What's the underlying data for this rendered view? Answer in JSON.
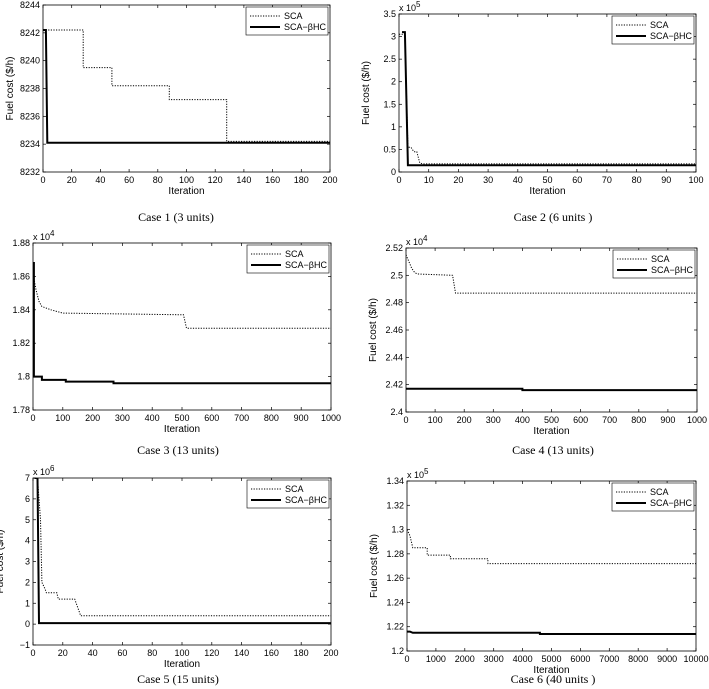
{
  "legend_labels": [
    "SCA",
    "SCA−βHC"
  ],
  "chart_data": [
    {
      "type": "line",
      "caption": "Case 1 (3 units)",
      "xlabel": "Iteration",
      "ylabel": "Fuel cost ($/h)",
      "exponent": "",
      "xlim": [
        0,
        200
      ],
      "ylim": [
        8232,
        8244
      ],
      "xticks": [
        "0",
        "20",
        "40",
        "60",
        "80",
        "100",
        "120",
        "140",
        "160",
        "180",
        "200"
      ],
      "yticks": [
        "8232",
        "8234",
        "8236",
        "8238",
        "8240",
        "8242",
        "8244"
      ],
      "legend": "top-right",
      "series": [
        {
          "name": "SCA",
          "x": [
            0,
            28,
            28,
            48,
            48,
            88,
            88,
            128,
            128,
            200
          ],
          "y": [
            8242.2,
            8242.2,
            8239.5,
            8239.5,
            8238.2,
            8238.2,
            8237.2,
            8237.2,
            8234.2,
            8234.2
          ]
        },
        {
          "name": "SCA−βHC",
          "x": [
            0,
            2,
            3,
            200
          ],
          "y": [
            8242.2,
            8242.2,
            8234.1,
            8234.1
          ]
        }
      ]
    },
    {
      "type": "line",
      "caption": "Case 2 (6 units )",
      "xlabel": "Iteration",
      "ylabel": "Fuel cost ($/h)",
      "exponent": "5",
      "xlim": [
        0,
        100
      ],
      "ylim": [
        0,
        3.5
      ],
      "xticks": [
        "0",
        "10",
        "20",
        "30",
        "40",
        "50",
        "60",
        "70",
        "80",
        "90",
        "100"
      ],
      "yticks": [
        "0",
        "0.5",
        "1",
        "1.5",
        "2",
        "2.5",
        "3",
        "3.5"
      ],
      "legend": "top-right",
      "series": [
        {
          "name": "SCA",
          "x": [
            0,
            2,
            3,
            4,
            5,
            6,
            7,
            8,
            100
          ],
          "y": [
            3.05,
            3.05,
            0.55,
            0.55,
            0.45,
            0.45,
            0.2,
            0.18,
            0.18
          ]
        },
        {
          "name": "SCA−βHC",
          "x": [
            1,
            2,
            3,
            100
          ],
          "y": [
            3.1,
            3.1,
            0.15,
            0.15
          ]
        }
      ]
    },
    {
      "type": "line",
      "caption": "Case 3 (13 units)",
      "xlabel": "Iteration",
      "ylabel": "",
      "exponent": "4",
      "xlim": [
        0,
        1000
      ],
      "ylim": [
        1.78,
        1.88
      ],
      "xticks": [
        "0",
        "100",
        "200",
        "300",
        "400",
        "500",
        "600",
        "700",
        "800",
        "900",
        "1000"
      ],
      "yticks": [
        "1.78",
        "1.8",
        "1.82",
        "1.84",
        "1.86",
        "1.88"
      ],
      "legend": "top-right",
      "series": [
        {
          "name": "SCA",
          "x": [
            0,
            10,
            20,
            30,
            60,
            100,
            505,
            515,
            1000
          ],
          "y": [
            1.862,
            1.852,
            1.845,
            1.842,
            1.84,
            1.838,
            1.837,
            1.829,
            1.829
          ]
        },
        {
          "name": "SCA−βHC",
          "x": [
            0,
            3,
            3,
            30,
            30,
            110,
            110,
            270,
            270,
            1000
          ],
          "y": [
            1.868,
            1.868,
            1.8,
            1.8,
            1.798,
            1.798,
            1.797,
            1.797,
            1.796,
            1.796
          ]
        }
      ]
    },
    {
      "type": "line",
      "caption": "Case 4 (13 units)",
      "xlabel": "Iteration",
      "ylabel": "Fuel cost ($/h)",
      "exponent": "4",
      "xlim": [
        0,
        1000
      ],
      "ylim": [
        2.4,
        2.52
      ],
      "xticks": [
        "0",
        "100",
        "200",
        "300",
        "400",
        "500",
        "600",
        "700",
        "800",
        "900",
        "1000"
      ],
      "yticks": [
        "2.4",
        "2.42",
        "2.44",
        "2.46",
        "2.48",
        "2.5",
        "2.52"
      ],
      "legend": "top-right",
      "series": [
        {
          "name": "SCA",
          "x": [
            0,
            10,
            20,
            30,
            40,
            160,
            170,
            1000
          ],
          "y": [
            2.515,
            2.51,
            2.505,
            2.502,
            2.501,
            2.5,
            2.487,
            2.487
          ]
        },
        {
          "name": "SCA−βHC",
          "x": [
            0,
            400,
            400,
            1000
          ],
          "y": [
            2.417,
            2.417,
            2.416,
            2.416
          ]
        }
      ]
    },
    {
      "type": "line",
      "caption": "Case 5 (15 units)",
      "xlabel": "Iteration",
      "ylabel": "Fuel cost ($/h)",
      "exponent": "6",
      "xlim": [
        0,
        200
      ],
      "ylim": [
        -1,
        7
      ],
      "xticks": [
        "0",
        "20",
        "40",
        "60",
        "80",
        "100",
        "120",
        "140",
        "160",
        "180",
        "200"
      ],
      "yticks": [
        "−1",
        "0",
        "1",
        "2",
        "3",
        "4",
        "5",
        "6",
        "7"
      ],
      "legend": "top-right",
      "series": [
        {
          "name": "SCA",
          "x": [
            0,
            3,
            5,
            6,
            8,
            9,
            16,
            17,
            28,
            32,
            200
          ],
          "y": [
            7.0,
            7.0,
            5.0,
            2.0,
            1.7,
            1.5,
            1.5,
            1.2,
            1.2,
            0.4,
            0.4
          ]
        },
        {
          "name": "SCA−βHC",
          "x": [
            1,
            3,
            4,
            200
          ],
          "y": [
            7.0,
            7.0,
            0.05,
            0.05
          ]
        }
      ]
    },
    {
      "type": "line",
      "caption": "Case 6 (40 units )",
      "xlabel": "Iteration",
      "ylabel": "Fuel cost ($/h)",
      "exponent": "5",
      "xlim": [
        0,
        10000
      ],
      "ylim": [
        1.2,
        1.34
      ],
      "xticks": [
        "0",
        "1000",
        "2000",
        "3000",
        "4000",
        "5000",
        "6000",
        "7000",
        "8000",
        "9000",
        "10000"
      ],
      "yticks": [
        "1.2",
        "1.22",
        "1.24",
        "1.26",
        "1.28",
        "1.3",
        "1.32",
        "1.34"
      ],
      "legend": "top-right",
      "series": [
        {
          "name": "SCA",
          "x": [
            0,
            100,
            200,
            200,
            700,
            700,
            1500,
            1500,
            2800,
            2800,
            10000
          ],
          "y": [
            1.3,
            1.295,
            1.285,
            1.285,
            1.285,
            1.279,
            1.279,
            1.276,
            1.276,
            1.272,
            1.272
          ]
        },
        {
          "name": "SCA−βHC",
          "x": [
            0,
            100,
            200,
            4600,
            4600,
            10000
          ],
          "y": [
            1.216,
            1.216,
            1.215,
            1.215,
            1.214,
            1.214
          ]
        }
      ]
    }
  ]
}
